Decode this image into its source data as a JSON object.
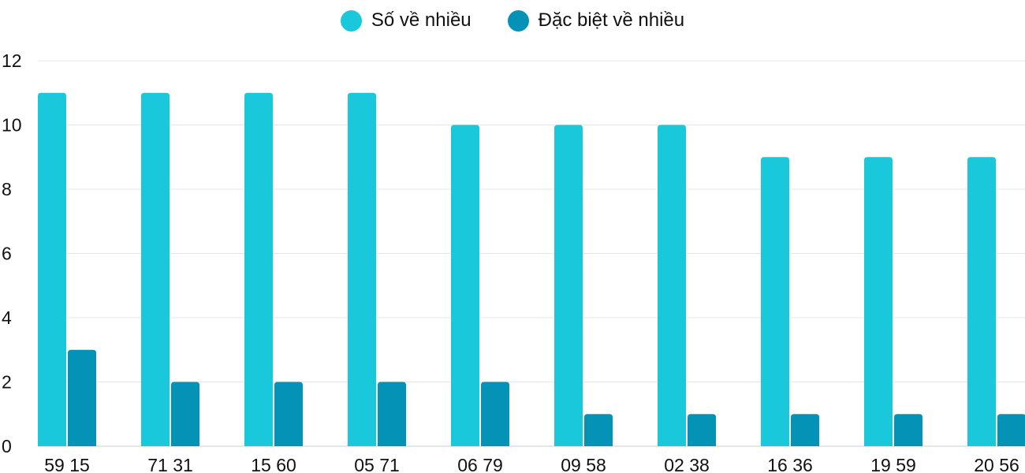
{
  "chart_data": {
    "type": "bar",
    "categories": [
      "59 15",
      "71 31",
      "15 60",
      "05 71",
      "06 79",
      "09 58",
      "02 38",
      "16 36",
      "19 59",
      "20 56"
    ],
    "series": [
      {
        "name": "Số về nhiều",
        "color": "#1ac8db",
        "values": [
          11,
          11,
          11,
          11,
          10,
          10,
          10,
          9,
          9,
          9
        ]
      },
      {
        "name": "Đặc biệt về nhiều",
        "color": "#0493b7",
        "values": [
          3,
          2,
          2,
          2,
          2,
          1,
          1,
          1,
          1,
          1
        ]
      }
    ],
    "ylim": [
      0,
      12
    ],
    "yticks": [
      "0",
      "2",
      "4",
      "6",
      "8",
      "10",
      "12"
    ],
    "grid": true,
    "legend": "top-center"
  }
}
